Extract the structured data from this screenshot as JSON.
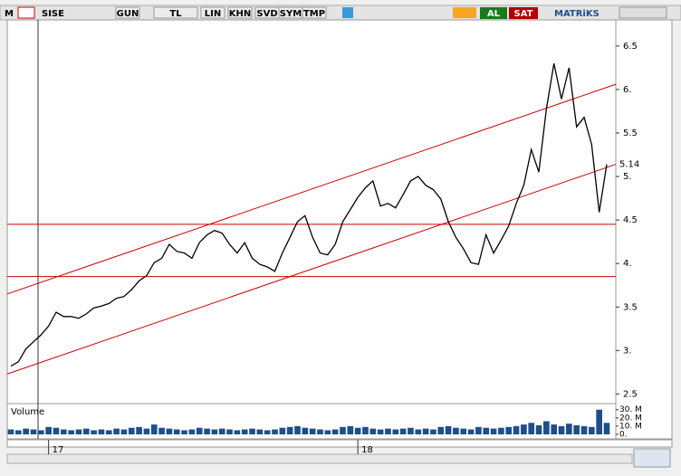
{
  "toolbar": {
    "logo": "M",
    "symbol": "SISE",
    "buttons": [
      "GUN",
      "TL",
      "LIN",
      "KHN",
      "SVD",
      "SYM",
      "TMP"
    ],
    "buy": "AL",
    "sell": "SAT",
    "brand": "MATRiKS"
  },
  "chart_data": {
    "type": "line",
    "color": "#000000",
    "categories": [
      null,
      null,
      null,
      null,
      null,
      "17",
      null,
      null,
      null,
      null,
      null,
      null,
      null,
      null,
      null,
      null,
      null,
      null,
      null,
      null,
      null,
      null,
      null,
      null,
      null,
      null,
      null,
      null,
      null,
      null,
      null,
      null,
      null,
      null,
      null,
      null,
      null,
      null,
      null,
      null,
      null,
      null,
      null,
      null,
      null,
      null,
      "18",
      null,
      null,
      null,
      null,
      null,
      null,
      null,
      null,
      null,
      null,
      null,
      null,
      null,
      null,
      null,
      null,
      null,
      null,
      null,
      null,
      null,
      null,
      null,
      null,
      null,
      null,
      null,
      null,
      null,
      null,
      null,
      null,
      null
    ],
    "values": [
      2.82,
      2.87,
      3.02,
      3.1,
      3.18,
      3.28,
      3.44,
      3.39,
      3.39,
      3.37,
      3.42,
      3.49,
      3.51,
      3.54,
      3.6,
      3.62,
      3.7,
      3.8,
      3.86,
      4.01,
      4.06,
      4.22,
      4.14,
      4.12,
      4.06,
      4.24,
      4.33,
      4.38,
      4.35,
      4.22,
      4.12,
      4.24,
      4.06,
      3.99,
      3.96,
      3.91,
      4.12,
      4.3,
      4.48,
      4.55,
      4.3,
      4.12,
      4.1,
      4.22,
      4.48,
      4.62,
      4.76,
      4.87,
      4.95,
      4.66,
      4.69,
      4.64,
      4.79,
      4.95,
      5.0,
      4.9,
      4.85,
      4.74,
      4.48,
      4.3,
      4.17,
      4.01,
      3.99,
      4.33,
      4.12,
      4.27,
      4.43,
      4.69,
      4.9,
      5.31,
      5.05,
      5.78,
      6.3,
      5.89,
      6.25,
      5.57,
      5.68,
      5.37,
      4.59,
      5.14
    ],
    "last_price": 5.14,
    "ylim": [
      2.4,
      6.8
    ],
    "yticks": [
      2.5,
      {
        "value": 3,
        "label": "3."
      },
      3.5,
      {
        "value": 4,
        "label": "4."
      },
      4.5,
      {
        "value": 5,
        "label": "5."
      },
      5.5,
      {
        "value": 6,
        "label": "6."
      },
      6.5
    ],
    "horizontal_levels": [
      4.45,
      3.85
    ],
    "channel_lines": [
      [
        3.65,
        6.06
      ],
      [
        2.73,
        5.14
      ]
    ],
    "line_color": "#cc0000",
    "volume_label": "Volume",
    "volume_color": "#1f4e8c",
    "volume": [
      6000000,
      5000000,
      7000000,
      6000000,
      5000000,
      9000000,
      8000000,
      6000000,
      5000000,
      6000000,
      7000000,
      5000000,
      6000000,
      5000000,
      7000000,
      6000000,
      8000000,
      9000000,
      7000000,
      12000000,
      8000000,
      7000000,
      6000000,
      5000000,
      6000000,
      8000000,
      7000000,
      6000000,
      7000000,
      6000000,
      5000000,
      6000000,
      7000000,
      6000000,
      5000000,
      6000000,
      8000000,
      9000000,
      10000000,
      8000000,
      7000000,
      6000000,
      5000000,
      6000000,
      9000000,
      10000000,
      8000000,
      9000000,
      7000000,
      6000000,
      7000000,
      6000000,
      7000000,
      8000000,
      6000000,
      7000000,
      6000000,
      9000000,
      10000000,
      8000000,
      7000000,
      6000000,
      9000000,
      8000000,
      7000000,
      8000000,
      9000000,
      10000000,
      12000000,
      14000000,
      11000000,
      16000000,
      12000000,
      10000000,
      13000000,
      11000000,
      10000000,
      9000000,
      30000000,
      14000000
    ],
    "vlim": [
      0,
      33000000
    ],
    "vticks": [
      {
        "value": 0,
        "label": "0."
      },
      {
        "value": 10000000,
        "label": "10. M"
      },
      {
        "value": 20000000,
        "label": "20. M"
      },
      {
        "value": 30000000,
        "label": "30. M"
      }
    ]
  }
}
